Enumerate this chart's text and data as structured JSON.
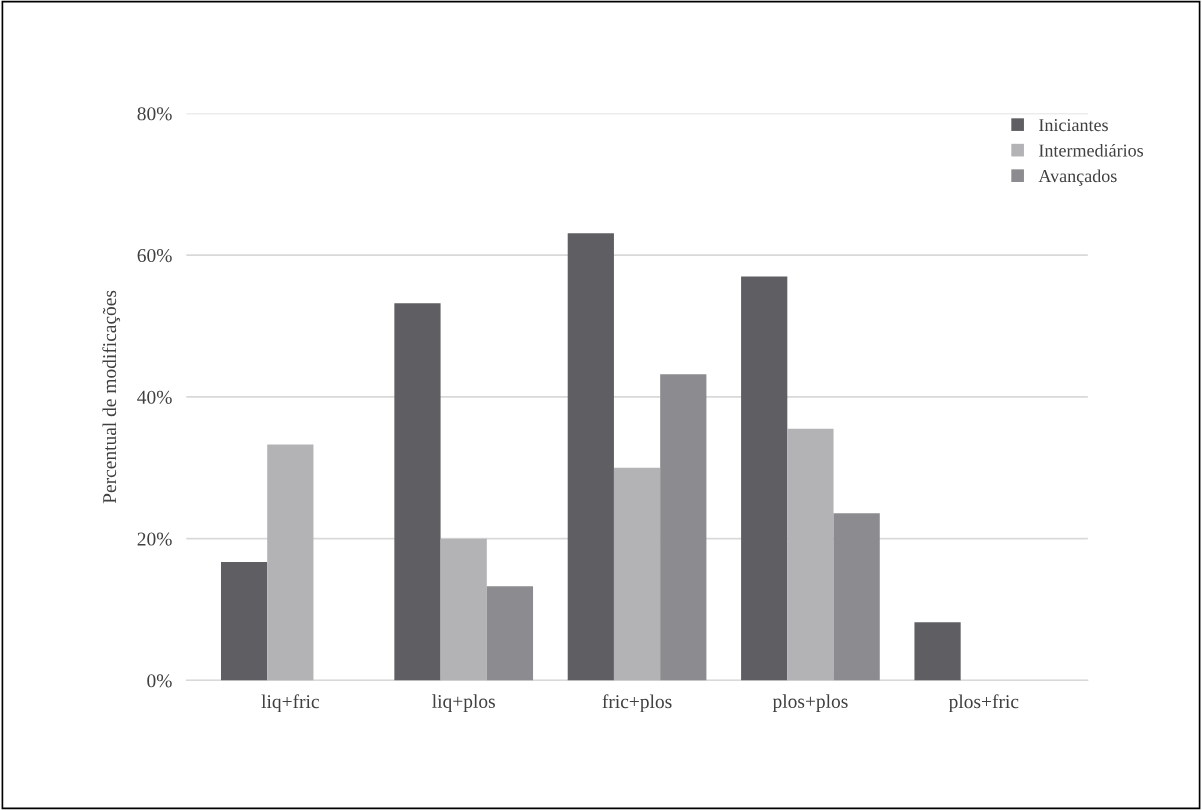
{
  "chart_data": {
    "type": "bar",
    "ylabel": "Percentual de modificações",
    "categories": [
      "liq+fric",
      "liq+plos",
      "fric+plos",
      "plos+plos",
      "plos+fric"
    ],
    "series": [
      {
        "name": "Iniciantes",
        "color": "#5f5e62",
        "values": [
          16.7,
          53.2,
          63.1,
          57,
          8.2
        ]
      },
      {
        "name": "Intermediários",
        "color": "#b3b2b5",
        "values": [
          33.3,
          20,
          30,
          35.5,
          0
        ]
      },
      {
        "name": "Avançados",
        "color": "#8c8b8f",
        "values": [
          0,
          13.3,
          43.2,
          23.6,
          0
        ]
      }
    ],
    "ylim": [
      0,
      80
    ],
    "yticks": [
      {
        "value": 0,
        "label": "0%"
      },
      {
        "value": 20,
        "label": "20%"
      },
      {
        "value": 40,
        "label": "40%"
      },
      {
        "value": 60,
        "label": "60%"
      },
      {
        "value": 80,
        "label": "80%"
      }
    ],
    "grid": "y",
    "legend": "top right"
  }
}
